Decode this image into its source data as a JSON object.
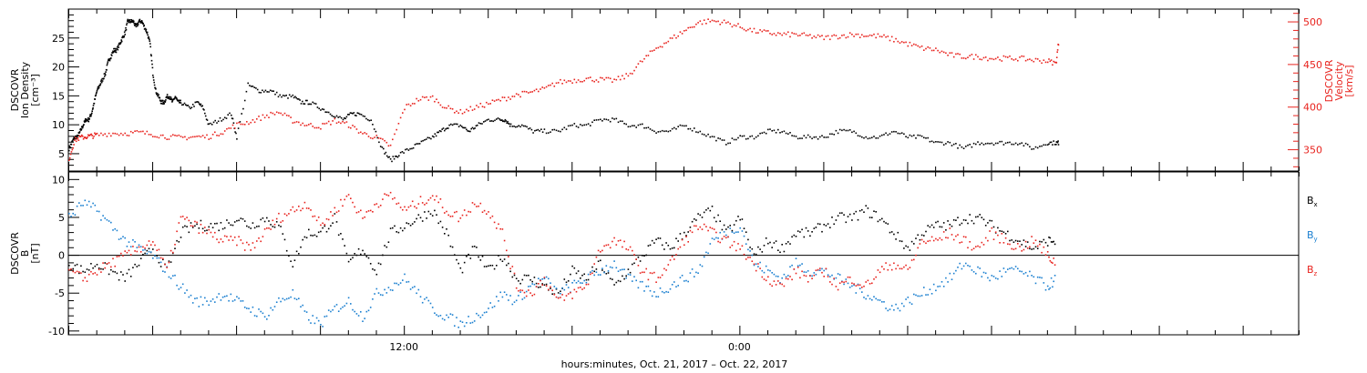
{
  "chart_data": [
    {
      "type": "scatter",
      "panel": "density-velocity",
      "left_axis": {
        "label_lines": [
          "DSCOVR",
          "Ion Density",
          "[cm⁻³]"
        ],
        "ylim": [
          2,
          30
        ],
        "ticks": [
          5,
          10,
          15,
          20,
          25
        ],
        "color": "#000000"
      },
      "right_axis": {
        "label_lines": [
          "DSCOVR",
          "Velocity",
          "[km/s]"
        ],
        "ylim": [
          325,
          515
        ],
        "ticks": [
          350,
          400,
          450,
          500
        ],
        "color": "#e8231e"
      },
      "series": [
        {
          "axis": "left",
          "color": "#000000",
          "x": [
            0,
            0.1,
            0.2,
            0.3,
            0.4,
            0.5,
            0.6,
            0.7,
            0.8,
            0.9,
            1.0,
            1.1,
            1.2,
            1.3,
            1.4,
            1.5,
            1.6,
            1.7,
            1.8,
            1.9,
            2.0,
            2.1,
            2.2,
            2.3,
            2.4,
            2.5,
            2.6,
            2.7,
            2.8,
            2.9,
            3.0,
            3.1,
            3.2,
            3.3,
            3.4,
            3.5,
            3.6,
            3.7,
            3.8,
            3.9,
            4.0,
            4.3,
            4.6,
            4.8,
            5.0,
            5.4,
            5.8,
            6.0,
            6.4,
            6.8,
            7.2,
            7.6,
            8.0,
            8.3,
            8.6,
            9.0,
            9.4,
            9.8,
            10.1,
            10.4,
            10.8,
            11.2,
            11.5,
            11.8,
            12.2,
            12.6,
            13.0,
            13.3,
            13.6,
            14.0,
            14.3,
            14.6,
            15.0,
            15.4,
            15.6,
            15.8,
            16.2,
            16.6,
            17.0,
            17.5,
            18.0,
            18.5,
            19.0,
            19.5,
            20.0,
            20.5,
            21.0,
            21.5,
            22.0,
            22.5,
            23.0,
            23.5,
            24.0,
            24.5,
            25.0,
            25.5,
            26.0,
            26.5,
            27.0,
            27.5,
            28.0,
            28.5,
            29.0,
            29.5,
            30.0,
            30.5,
            31.0,
            31.5,
            32.0,
            32.5,
            33.0,
            33.5,
            34.0,
            34.5,
            35.0,
            35.3,
            35.4
          ],
          "values": [
            6,
            7,
            8,
            8,
            9,
            10,
            11,
            11,
            12,
            14,
            16,
            17,
            18,
            19,
            21,
            22,
            23,
            23,
            24,
            25,
            26,
            28,
            28,
            28,
            27,
            28,
            28,
            27,
            26,
            24,
            19,
            16,
            15,
            14,
            14,
            15,
            15,
            14,
            15,
            14,
            14,
            13,
            14,
            13,
            10,
            11,
            12,
            8,
            17,
            16,
            16,
            15,
            15,
            14,
            14,
            13,
            12,
            11,
            12,
            12,
            11,
            6,
            4,
            5,
            6,
            7,
            8,
            9,
            10,
            10,
            9,
            10,
            11,
            11,
            11,
            10,
            10,
            9,
            9,
            9,
            10,
            10,
            11,
            11,
            10,
            10,
            9,
            9,
            10,
            9,
            8,
            7,
            8,
            8,
            9,
            9,
            8,
            8,
            8,
            9,
            9,
            8,
            8,
            9,
            8,
            8,
            7,
            7,
            6,
            7,
            7,
            7,
            7,
            6,
            7,
            7,
            7
          ]
        },
        {
          "axis": "right",
          "color": "#e8231e",
          "x": [
            0,
            0.2,
            0.4,
            0.6,
            0.8,
            1.0,
            1.5,
            2.0,
            2.5,
            3.0,
            3.5,
            4.0,
            4.5,
            5.0,
            5.5,
            6.0,
            6.5,
            7.0,
            7.5,
            8.0,
            8.5,
            9.0,
            9.5,
            10.0,
            10.5,
            11.0,
            11.5,
            12.0,
            12.5,
            13.0,
            13.5,
            14.0,
            14.5,
            15.0,
            15.5,
            16.0,
            16.5,
            17.0,
            17.5,
            18.0,
            18.5,
            19.0,
            19.5,
            20.0,
            20.5,
            21.0,
            21.5,
            22.0,
            22.5,
            23.0,
            23.5,
            24.0,
            24.5,
            25.0,
            25.5,
            26.0,
            26.5,
            27.0,
            27.5,
            28.0,
            28.5,
            29.0,
            29.5,
            30.0,
            30.5,
            31.0,
            31.5,
            32.0,
            32.5,
            33.0,
            33.5,
            34.0,
            34.5,
            35.0,
            35.3,
            35.4
          ],
          "values": [
            340,
            362,
            365,
            366,
            367,
            368,
            370,
            370,
            371,
            369,
            366,
            365,
            366,
            366,
            372,
            380,
            384,
            390,
            395,
            385,
            380,
            378,
            385,
            380,
            370,
            365,
            355,
            400,
            410,
            412,
            400,
            395,
            400,
            405,
            410,
            415,
            418,
            422,
            430,
            432,
            434,
            433,
            432,
            438,
            455,
            470,
            480,
            490,
            500,
            502,
            500,
            495,
            490,
            488,
            486,
            486,
            484,
            482,
            484,
            486,
            485,
            484,
            480,
            475,
            470,
            468,
            462,
            460,
            460,
            458,
            458,
            458,
            456,
            455,
            452,
            480
          ]
        }
      ]
    },
    {
      "type": "scatter",
      "panel": "magnetic-field",
      "left_axis": {
        "label_lines": [
          "DSCOVR",
          "B",
          "[nT]"
        ],
        "ylim": [
          -10.5,
          11
        ],
        "ticks": [
          -10,
          -5,
          0,
          5,
          10
        ],
        "color": "#000000"
      },
      "series": [
        {
          "name": "Bx",
          "color": "#000000",
          "x": [
            0,
            0.5,
            1.0,
            1.5,
            2.0,
            2.5,
            3.0,
            3.5,
            4.0,
            4.5,
            5.0,
            5.5,
            6.0,
            6.5,
            7.0,
            7.5,
            8.0,
            8.5,
            9.0,
            9.5,
            10.0,
            10.5,
            11.0,
            11.5,
            12.0,
            12.5,
            13.0,
            13.5,
            14.0,
            14.5,
            15.0,
            15.5,
            16.0,
            16.5,
            17.0,
            17.5,
            18.0,
            18.5,
            19.0,
            19.5,
            20.0,
            20.5,
            21.0,
            21.5,
            22.0,
            22.5,
            23.0,
            23.5,
            24.0,
            24.5,
            25.0,
            25.5,
            26.0,
            26.5,
            27.0,
            27.5,
            28.0,
            28.5,
            29.0,
            29.5,
            30.0,
            30.5,
            31.0,
            31.5,
            32.0,
            32.5,
            33.0,
            33.5,
            34.0,
            34.5,
            35.0,
            35.3
          ],
          "values": [
            -1,
            -2,
            -1,
            -2,
            -3,
            -1,
            1,
            -2,
            3,
            4,
            4,
            4,
            5,
            4,
            5,
            4,
            -1,
            3,
            3,
            5,
            -1,
            1,
            -2,
            3,
            4,
            5,
            6,
            3,
            -2,
            1,
            -2,
            0,
            -3,
            -3,
            -4,
            -5,
            -2,
            -3,
            -1,
            -4,
            -2,
            0,
            2,
            1,
            3,
            5,
            6,
            3,
            5,
            0,
            2,
            1,
            3,
            3,
            4,
            5,
            5,
            6,
            5,
            3,
            1,
            3,
            4,
            4,
            5,
            5,
            4,
            3,
            2,
            1,
            2,
            2
          ]
        },
        {
          "name": "By",
          "color": "#1a7fd0",
          "x": [
            0,
            0.5,
            1.0,
            1.5,
            2.0,
            2.5,
            3.0,
            3.5,
            4.0,
            4.5,
            5.0,
            5.5,
            6.0,
            6.5,
            7.0,
            7.5,
            8.0,
            8.5,
            9.0,
            9.5,
            10.0,
            10.5,
            11.0,
            11.5,
            12.0,
            12.5,
            13.0,
            13.5,
            14.0,
            14.5,
            15.0,
            15.5,
            16.0,
            16.5,
            17.0,
            17.5,
            18.0,
            18.5,
            19.0,
            19.5,
            20.0,
            20.5,
            21.0,
            21.5,
            22.0,
            22.5,
            23.0,
            23.5,
            24.0,
            24.5,
            25.0,
            25.5,
            26.0,
            26.5,
            27.0,
            27.5,
            28.0,
            28.5,
            29.0,
            29.5,
            30.0,
            30.5,
            31.0,
            31.5,
            32.0,
            32.5,
            33.0,
            33.5,
            34.0,
            34.5,
            35.0,
            35.3
          ],
          "values": [
            5,
            7,
            6,
            4,
            2,
            1,
            0,
            -2,
            -4,
            -6,
            -6,
            -5,
            -6,
            -7,
            -8,
            -6,
            -5,
            -8,
            -9,
            -7,
            -6,
            -8,
            -5,
            -4,
            -3,
            -5,
            -7,
            -8,
            -9,
            -8,
            -7,
            -5,
            -6,
            -4,
            -3,
            -5,
            -4,
            -3,
            -2,
            -1,
            -3,
            -4,
            -5,
            -4,
            -3,
            -2,
            2,
            3,
            4,
            -1,
            -2,
            -3,
            -1,
            -2,
            -2,
            -3,
            -4,
            -5,
            -6,
            -7,
            -6,
            -5,
            -4,
            -3,
            -1,
            -2,
            -3,
            -2,
            -2,
            -3,
            -4,
            -3
          ]
        },
        {
          "name": "Bz",
          "color": "#e8231e",
          "x": [
            0,
            0.5,
            1.0,
            1.5,
            2.0,
            2.5,
            3.0,
            3.5,
            4.0,
            4.5,
            5.0,
            5.5,
            6.0,
            6.5,
            7.0,
            7.5,
            8.0,
            8.5,
            9.0,
            9.5,
            10.0,
            10.5,
            11.0,
            11.5,
            12.0,
            12.5,
            13.0,
            13.5,
            14.0,
            14.5,
            15.0,
            15.5,
            16.0,
            16.5,
            17.0,
            17.5,
            18.0,
            18.5,
            19.0,
            19.5,
            20.0,
            20.5,
            21.0,
            21.5,
            22.0,
            22.5,
            23.0,
            23.5,
            24.0,
            24.5,
            25.0,
            25.5,
            26.0,
            26.5,
            27.0,
            27.5,
            28.0,
            28.5,
            29.0,
            29.5,
            30.0,
            30.5,
            31.0,
            31.5,
            32.0,
            32.5,
            33.0,
            33.5,
            34.0,
            34.5,
            35.0,
            35.3
          ],
          "values": [
            -2,
            -3,
            -2,
            -1,
            0,
            1,
            2,
            -2,
            5,
            4,
            3,
            2,
            2,
            1,
            3,
            5,
            6,
            7,
            4,
            6,
            8,
            5,
            7,
            8,
            6,
            7,
            8,
            6,
            5,
            7,
            6,
            3,
            -4,
            -5,
            -3,
            -6,
            -5,
            -4,
            1,
            2,
            1,
            -2,
            -3,
            -1,
            2,
            4,
            3,
            2,
            1,
            -1,
            -3,
            -4,
            -2,
            -3,
            -2,
            -4,
            -3,
            -4,
            -2,
            -1,
            -2,
            2,
            2,
            3,
            2,
            1,
            3,
            2,
            1,
            2,
            0,
            -1
          ]
        }
      ],
      "legend": {
        "placement": "right",
        "entries": [
          {
            "base": "B",
            "sub": "x",
            "color": "#000000"
          },
          {
            "base": "B",
            "sub": "y",
            "color": "#1a7fd0"
          },
          {
            "base": "B",
            "sub": "z",
            "color": "#e8231e"
          }
        ]
      },
      "zero_line": true
    }
  ],
  "x_axis": {
    "xlim": [
      0,
      44
    ],
    "tick_labels": [
      {
        "hour": 12,
        "label": "12:00"
      },
      {
        "hour": 24,
        "label": "0:00"
      }
    ],
    "title": "hours:minutes, Oct. 21, 2017 – Oct. 22, 2017"
  }
}
